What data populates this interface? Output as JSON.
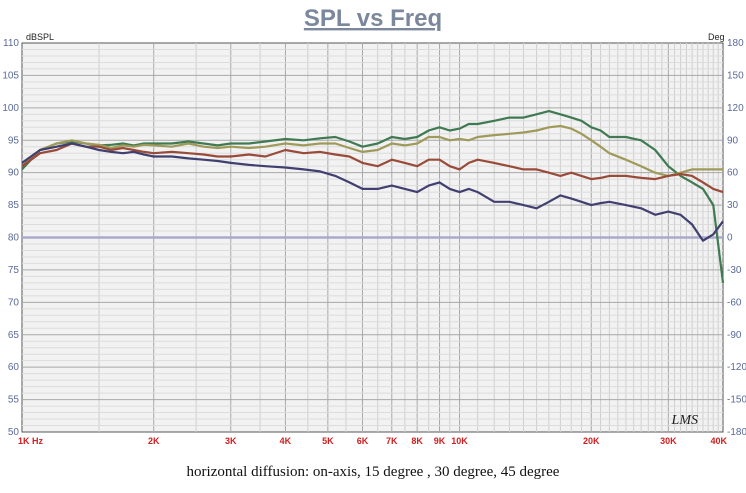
{
  "chart_data": {
    "type": "line",
    "title": "SPL vs Freq",
    "left_unit": "dBSPL",
    "right_unit": "Deg",
    "x_scale": "log",
    "xlim": [
      1000,
      40000
    ],
    "ylim": [
      50,
      110
    ],
    "y2lim": [
      -180,
      180
    ],
    "grid": true,
    "x_ticks": [
      {
        "value": 1000,
        "label": "1K  Hz"
      },
      {
        "value": 2000,
        "label": "2K"
      },
      {
        "value": 3000,
        "label": "3K"
      },
      {
        "value": 4000,
        "label": "4K"
      },
      {
        "value": 5000,
        "label": "5K"
      },
      {
        "value": 6000,
        "label": "6K"
      },
      {
        "value": 7000,
        "label": "7K"
      },
      {
        "value": 8000,
        "label": "8K"
      },
      {
        "value": 9000,
        "label": "9K"
      },
      {
        "value": 10000,
        "label": "10K"
      },
      {
        "value": 20000,
        "label": "20K"
      },
      {
        "value": 30000,
        "label": "30K"
      },
      {
        "value": 40000,
        "label": "40K"
      }
    ],
    "y_ticks": [
      "110",
      "105",
      "100",
      "95",
      "90",
      "85",
      "80",
      "75",
      "70",
      "65",
      "60",
      "55",
      "50"
    ],
    "y2_ticks": [
      "180",
      "150",
      "120",
      "90",
      "60",
      "30",
      "0",
      "-30",
      "-60",
      "-90",
      "-120",
      "-150",
      "-180"
    ],
    "series": [
      {
        "color": "#3f7a52",
        "x": [
          1000,
          1100,
          1200,
          1300,
          1400,
          1500,
          1600,
          1700,
          1800,
          1900,
          2000,
          2200,
          2400,
          2600,
          2800,
          3000,
          3300,
          3600,
          4000,
          4400,
          4800,
          5200,
          5600,
          6000,
          6500,
          7000,
          7500,
          8000,
          8500,
          9000,
          9500,
          10000,
          10500,
          11000,
          12000,
          13000,
          14000,
          15000,
          16000,
          17000,
          18000,
          19000,
          20000,
          21000,
          22000,
          24000,
          26000,
          28000,
          30000,
          32000,
          34000,
          36000,
          38000,
          40000
        ],
        "y": [
          90.5,
          93.5,
          94.5,
          94.8,
          94.5,
          94.2,
          94.3,
          94.5,
          94.2,
          94.5,
          94.5,
          94.5,
          94.8,
          94.5,
          94.2,
          94.5,
          94.5,
          94.8,
          95.2,
          95.0,
          95.3,
          95.5,
          94.8,
          94.0,
          94.5,
          95.5,
          95.2,
          95.5,
          96.5,
          97.0,
          96.5,
          96.8,
          97.5,
          97.5,
          98.0,
          98.5,
          98.5,
          99.0,
          99.5,
          99.0,
          98.5,
          98.0,
          97.0,
          96.5,
          95.5,
          95.5,
          95.0,
          93.5,
          91.0,
          89.5,
          88.5,
          87.5,
          85.0,
          73.0
        ]
      },
      {
        "color": "#a09a5a",
        "x": [
          1000,
          1100,
          1200,
          1300,
          1400,
          1500,
          1600,
          1700,
          1800,
          1900,
          2000,
          2200,
          2400,
          2600,
          2800,
          3000,
          3300,
          3600,
          4000,
          4400,
          4800,
          5200,
          5600,
          6000,
          6500,
          7000,
          7500,
          8000,
          8500,
          9000,
          9500,
          10000,
          10500,
          11000,
          12000,
          13000,
          14000,
          15000,
          16000,
          17000,
          18000,
          19000,
          20000,
          21000,
          22000,
          24000,
          26000,
          28000,
          30000,
          32000,
          34000,
          36000,
          38000,
          40000
        ],
        "y": [
          91.0,
          93.5,
          94.5,
          95.0,
          94.5,
          94.3,
          93.8,
          94.2,
          94.0,
          94.3,
          94.2,
          94.0,
          94.5,
          94.0,
          93.8,
          94.0,
          93.8,
          94.0,
          94.5,
          94.2,
          94.5,
          94.5,
          93.8,
          93.2,
          93.5,
          94.5,
          94.2,
          94.5,
          95.5,
          95.5,
          95.0,
          95.2,
          95.0,
          95.5,
          95.8,
          96.0,
          96.2,
          96.5,
          97.0,
          97.2,
          96.8,
          96.0,
          95.0,
          94.0,
          93.0,
          92.0,
          91.0,
          90.0,
          89.5,
          90.0,
          90.5,
          90.5,
          90.5,
          90.5
        ]
      },
      {
        "color": "#9a4a38",
        "x": [
          1000,
          1100,
          1200,
          1300,
          1400,
          1500,
          1600,
          1700,
          1800,
          1900,
          2000,
          2200,
          2400,
          2600,
          2800,
          3000,
          3300,
          3600,
          4000,
          4400,
          4800,
          5200,
          5600,
          6000,
          6500,
          7000,
          7500,
          8000,
          8500,
          9000,
          9500,
          10000,
          10500,
          11000,
          12000,
          13000,
          14000,
          15000,
          16000,
          17000,
          18000,
          19000,
          20000,
          21000,
          22000,
          24000,
          26000,
          28000,
          30000,
          32000,
          34000,
          36000,
          38000,
          40000
        ],
        "y": [
          91.0,
          93.0,
          93.5,
          94.5,
          94.0,
          94.0,
          93.5,
          93.8,
          93.5,
          93.2,
          93.0,
          93.2,
          93.0,
          92.8,
          92.5,
          92.5,
          92.8,
          92.5,
          93.5,
          93.0,
          93.2,
          92.8,
          92.5,
          91.5,
          91.0,
          92.0,
          91.5,
          91.0,
          92.0,
          92.0,
          91.0,
          90.5,
          91.5,
          92.0,
          91.5,
          91.0,
          90.5,
          90.5,
          90.0,
          89.5,
          90.0,
          89.5,
          89.0,
          89.2,
          89.5,
          89.5,
          89.2,
          89.0,
          89.5,
          89.8,
          89.5,
          88.5,
          87.5,
          87.0
        ]
      },
      {
        "color": "#404070",
        "x": [
          1000,
          1100,
          1200,
          1300,
          1400,
          1500,
          1600,
          1700,
          1800,
          1900,
          2000,
          2200,
          2400,
          2600,
          2800,
          3000,
          3300,
          3600,
          4000,
          4400,
          4800,
          5200,
          5600,
          6000,
          6500,
          7000,
          7500,
          8000,
          8500,
          9000,
          9500,
          10000,
          10500,
          11000,
          12000,
          13000,
          14000,
          15000,
          16000,
          17000,
          18000,
          19000,
          20000,
          21000,
          22000,
          24000,
          26000,
          28000,
          30000,
          32000,
          34000,
          36000,
          38000,
          40000
        ],
        "y": [
          91.5,
          93.5,
          94.0,
          94.5,
          94.0,
          93.5,
          93.2,
          93.0,
          93.2,
          92.8,
          92.5,
          92.5,
          92.2,
          92.0,
          91.8,
          91.5,
          91.2,
          91.0,
          90.8,
          90.5,
          90.2,
          89.5,
          88.5,
          87.5,
          87.5,
          88.0,
          87.5,
          87.0,
          88.0,
          88.5,
          87.5,
          87.0,
          87.5,
          87.0,
          85.5,
          85.5,
          85.0,
          84.5,
          85.5,
          86.5,
          86.0,
          85.5,
          85.0,
          85.3,
          85.5,
          85.0,
          84.5,
          83.5,
          84.0,
          83.5,
          82.0,
          79.5,
          80.5,
          82.5
        ]
      }
    ]
  },
  "watermark": "LMS",
  "caption": "horizontal diffusion: on-axis, 15 degree , 30 degree, 45 degree"
}
